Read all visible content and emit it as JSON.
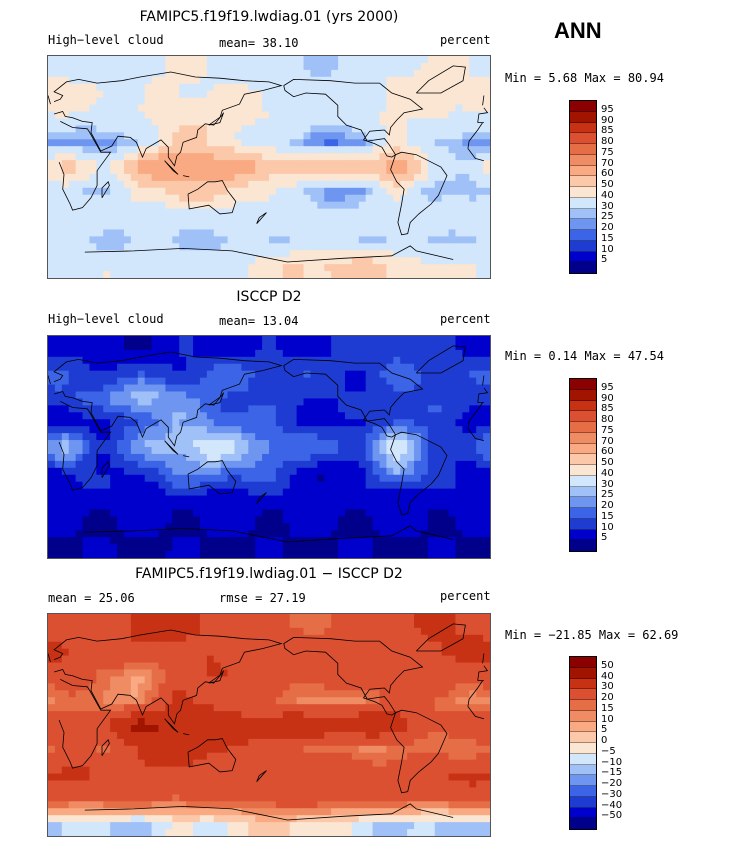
{
  "season": "ANN",
  "palettes": {
    "abs": [
      "#00008b",
      "#0000cd",
      "#1e3cd2",
      "#3c64e6",
      "#6e96f0",
      "#a0c0f8",
      "#d2e6fc",
      "#fae6d2",
      "#fcc8aa",
      "#faaa82",
      "#f08c64",
      "#e66e46",
      "#dc5032",
      "#c83214",
      "#a01400",
      "#8b0000"
    ],
    "diff": [
      "#00008b",
      "#0000cd",
      "#1e3cd2",
      "#3c64e6",
      "#6e96f0",
      "#a0c0f8",
      "#d2e6fc",
      "#fae6d2",
      "#fcc8aa",
      "#faaa82",
      "#f08c64",
      "#e66e46",
      "#dc5032",
      "#c83214",
      "#a01400",
      "#8b0000"
    ]
  },
  "chart_data": [
    {
      "type": "heatmap",
      "panel": "model",
      "title": "FAMIPC5.f19f19.lwdiag.01 (yrs 2000)",
      "left_label": "High−level cloud",
      "mean_label": "mean=   38.10",
      "units": "percent",
      "min": 5.68,
      "max": 80.94,
      "minmax_label": "Min =   5.68 Max =  80.94",
      "levels": [
        "95",
        "90",
        "85",
        "80",
        "75",
        "70",
        "60",
        "50",
        "40",
        "30",
        "25",
        "20",
        "15",
        "10",
        "5"
      ],
      "palette": "abs",
      "lon_centers": [
        15,
        45,
        75,
        105,
        135,
        165,
        195,
        225,
        255,
        285,
        315,
        345
      ],
      "lat_centers": [
        80,
        60,
        40,
        20,
        0,
        -20,
        -40,
        -60,
        -80
      ],
      "values": [
        [
          35,
          32,
          40,
          42,
          38,
          32,
          30,
          28,
          35,
          40,
          42,
          38
        ],
        [
          45,
          42,
          38,
          40,
          42,
          40,
          38,
          36,
          40,
          42,
          45,
          45
        ],
        [
          40,
          35,
          40,
          45,
          48,
          42,
          38,
          35,
          38,
          42,
          40,
          38
        ],
        [
          25,
          20,
          30,
          55,
          48,
          38,
          30,
          20,
          22,
          45,
          30,
          22
        ],
        [
          55,
          40,
          65,
          72,
          70,
          62,
          58,
          55,
          60,
          68,
          38,
          35
        ],
        [
          35,
          25,
          45,
          55,
          55,
          45,
          35,
          25,
          20,
          45,
          25,
          25
        ],
        [
          40,
          38,
          36,
          34,
          35,
          36,
          36,
          34,
          34,
          36,
          38,
          40
        ],
        [
          30,
          28,
          30,
          28,
          28,
          30,
          32,
          32,
          32,
          30,
          28,
          30
        ],
        [
          40,
          38,
          36,
          36,
          35,
          42,
          48,
          52,
          55,
          48,
          42,
          40
        ]
      ]
    },
    {
      "type": "heatmap",
      "panel": "obs",
      "title": "ISCCP D2",
      "left_label": "High−level cloud",
      "mean_label": "mean=   13.04",
      "units": "percent",
      "min": 0.14,
      "max": 47.54,
      "minmax_label": "Min =   0.14 Max =  47.54",
      "levels": [
        "95",
        "90",
        "85",
        "80",
        "75",
        "70",
        "60",
        "50",
        "40",
        "30",
        "25",
        "20",
        "15",
        "10",
        "5"
      ],
      "palette": "abs",
      "lon_centers": [
        15,
        45,
        75,
        105,
        135,
        165,
        195,
        225,
        255,
        285,
        315,
        345
      ],
      "lat_centers": [
        80,
        60,
        40,
        20,
        0,
        -20,
        -40,
        -60,
        -80
      ],
      "values": [
        [
          8,
          6,
          6,
          8,
          8,
          8,
          8,
          10,
          12,
          14,
          10,
          8
        ],
        [
          14,
          12,
          12,
          12,
          16,
          16,
          14,
          12,
          12,
          16,
          14,
          14
        ],
        [
          14,
          18,
          30,
          22,
          16,
          14,
          12,
          10,
          10,
          14,
          14,
          12
        ],
        [
          8,
          6,
          18,
          24,
          20,
          16,
          12,
          8,
          8,
          18,
          12,
          8
        ],
        [
          28,
          12,
          22,
          30,
          36,
          26,
          20,
          16,
          18,
          34,
          14,
          12
        ],
        [
          12,
          8,
          12,
          20,
          22,
          18,
          12,
          6,
          6,
          28,
          10,
          8
        ],
        [
          8,
          8,
          8,
          8,
          8,
          8,
          8,
          8,
          8,
          8,
          8,
          8
        ],
        [
          6,
          6,
          6,
          6,
          6,
          6,
          6,
          6,
          6,
          6,
          6,
          6
        ],
        [
          4,
          4,
          4,
          4,
          4,
          4,
          4,
          4,
          4,
          4,
          4,
          4
        ]
      ]
    },
    {
      "type": "heatmap",
      "panel": "diff",
      "title": "FAMIPC5.f19f19.lwdiag.01 − ISCCP D2",
      "left_label": "mean =   25.06",
      "mean_label": "rmse =   27.19",
      "units": "percent",
      "min": -21.85,
      "max": 62.69,
      "minmax_label": "Min = −21.85 Max =  62.69",
      "levels": [
        "50",
        "40",
        "30",
        "20",
        "15",
        "10",
        "5",
        "0",
        "−5",
        "−10",
        "−15",
        "−20",
        "−30",
        "−40",
        "−50"
      ],
      "palette": "diff",
      "lon_centers": [
        15,
        45,
        75,
        105,
        135,
        165,
        195,
        225,
        255,
        285,
        315,
        345
      ],
      "lat_centers": [
        80,
        60,
        40,
        20,
        0,
        -20,
        -40,
        -60,
        -80
      ],
      "values": [
        [
          27,
          26,
          34,
          34,
          30,
          24,
          22,
          18,
          23,
          26,
          32,
          30
        ],
        [
          31,
          30,
          26,
          28,
          26,
          24,
          24,
          24,
          28,
          26,
          31,
          31
        ],
        [
          26,
          17,
          10,
          23,
          32,
          28,
          26,
          25,
          28,
          28,
          26,
          26
        ],
        [
          17,
          14,
          12,
          31,
          28,
          22,
          18,
          12,
          14,
          27,
          18,
          14
        ],
        [
          27,
          28,
          43,
          42,
          34,
          36,
          38,
          39,
          42,
          34,
          24,
          23
        ],
        [
          23,
          17,
          33,
          35,
          33,
          27,
          23,
          19,
          14,
          17,
          15,
          17
        ],
        [
          32,
          30,
          28,
          26,
          27,
          28,
          28,
          26,
          26,
          28,
          30,
          32
        ],
        [
          24,
          22,
          24,
          22,
          22,
          24,
          26,
          26,
          26,
          24,
          22,
          24
        ],
        [
          -10,
          -8,
          -12,
          -6,
          -4,
          -2,
          2,
          -4,
          -8,
          -10,
          -12,
          -10
        ]
      ]
    }
  ]
}
